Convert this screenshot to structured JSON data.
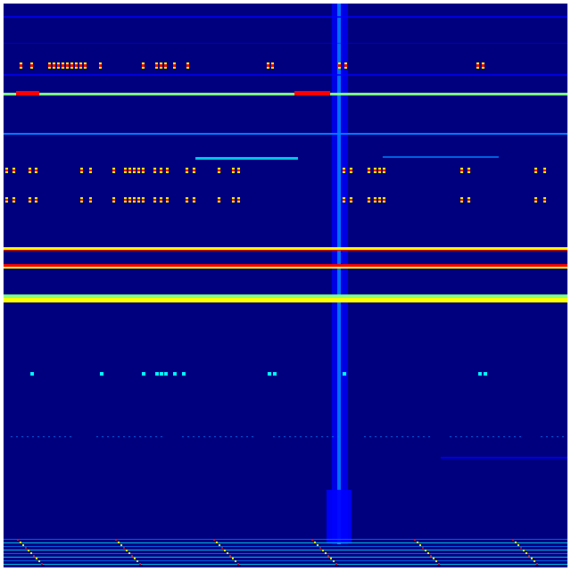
{
  "colormap": {
    "background": "#00007f",
    "low": "#0000ff",
    "mid_low": "#0080ff",
    "mid": "#00ffff",
    "mid_high": "#80ff80",
    "high": "#ffff00",
    "peak": "#ff0000"
  }
}
